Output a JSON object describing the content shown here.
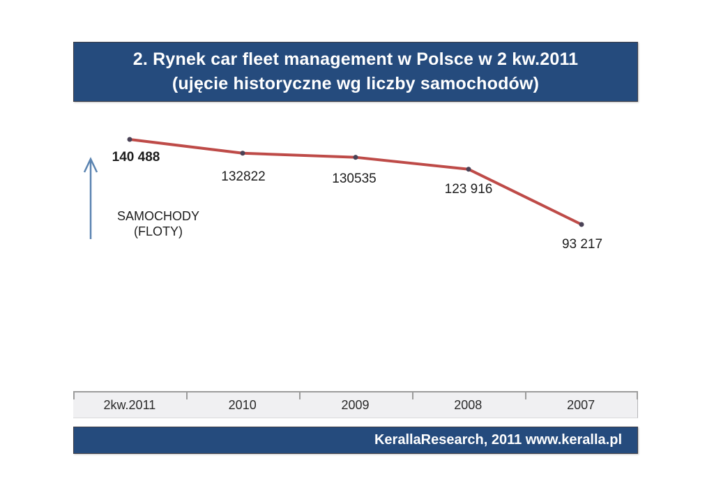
{
  "slide": {
    "title_line1": "2. Rynek car fleet management w Polsce w 2 kw.2011",
    "title_line2": "(ujęcie historyczne wg liczby samochodów)",
    "footer_text": "KerallaResearch, 2011 www.keralla.pl",
    "colors": {
      "bar_blue": "#254B7D",
      "line_red": "#BE4B48",
      "marker_dark": "#4A4256",
      "arrow_blue": "#5B84B1"
    }
  },
  "chart_data": {
    "type": "line",
    "title": "",
    "categories": [
      "2kw.2011",
      "2010",
      "2009",
      "2008",
      "2007"
    ],
    "series": [
      {
        "name": "SAMOCHODY (FLOTY)",
        "values": [
          140488,
          132822,
          130535,
          123916,
          93217
        ]
      }
    ],
    "value_labels": [
      "140 488",
      "132822",
      "130535",
      "123 916",
      "93 217"
    ],
    "xlabel": "",
    "ylabel": "SAMOCHODY\n(FLOTY)",
    "legend_position": "none",
    "grid": false,
    "x_order": "reverse-chronological",
    "line_color": "#BE4B48",
    "marker_color": "#4A4256"
  }
}
